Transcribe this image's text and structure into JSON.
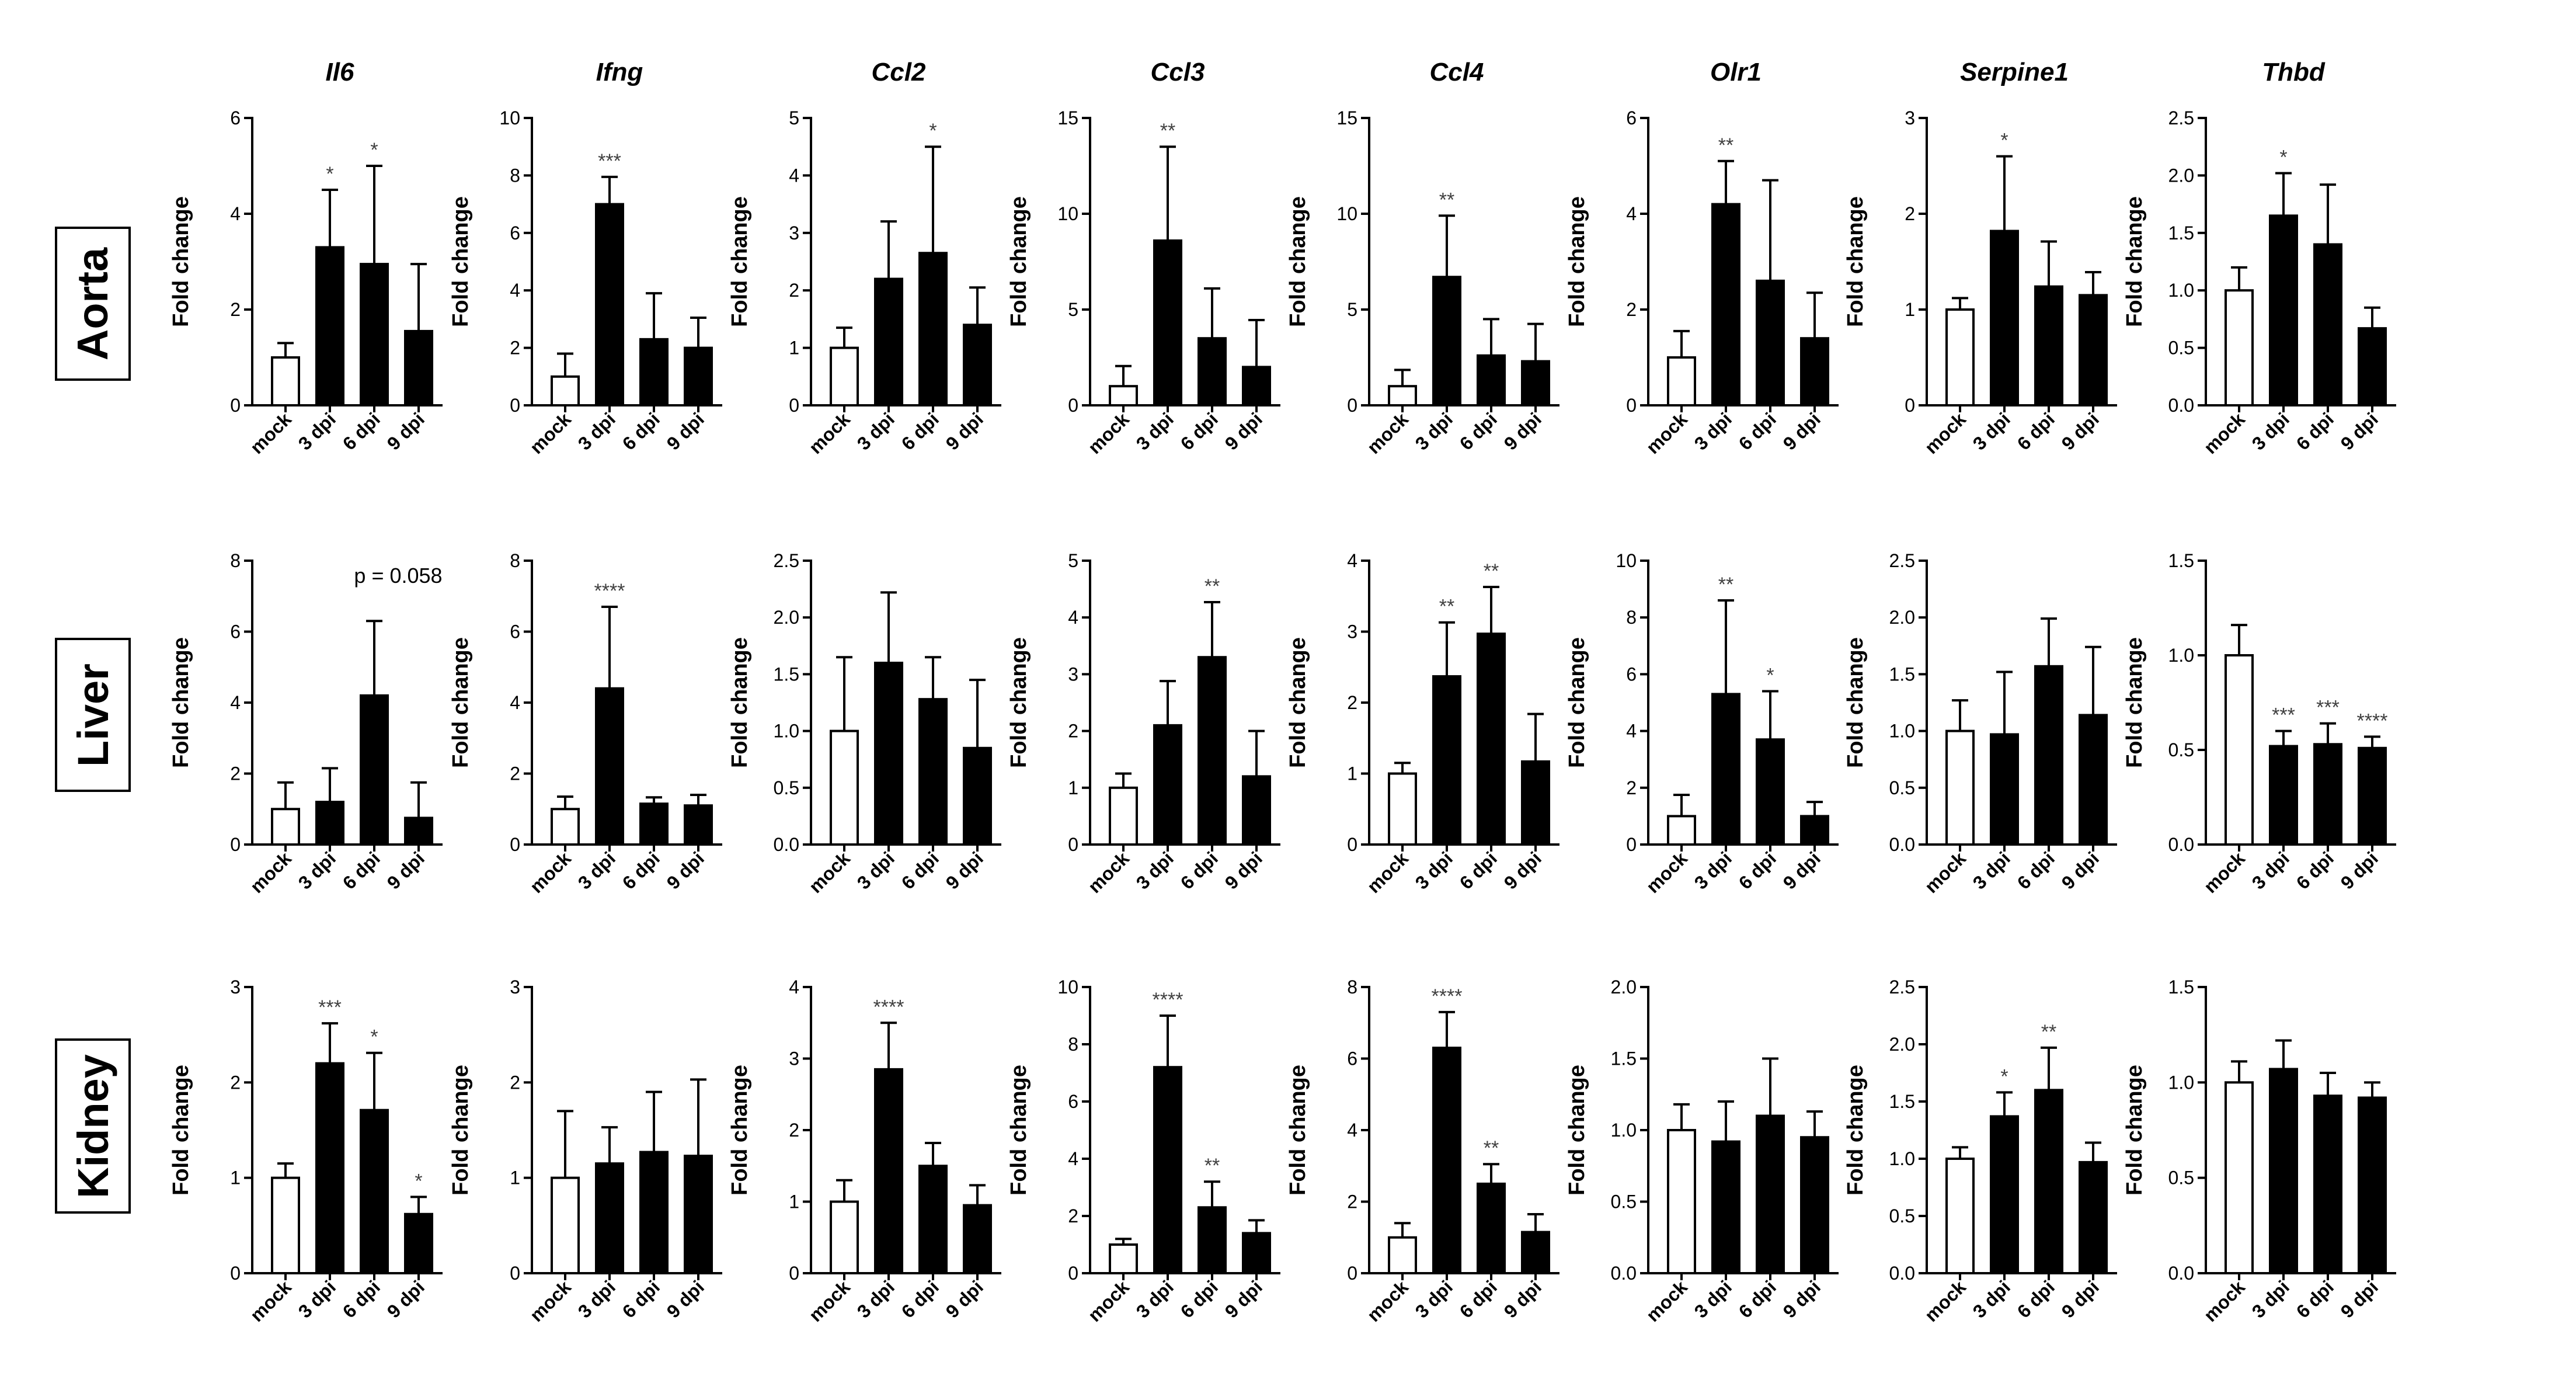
{
  "genes": [
    "Il6",
    "Ifng",
    "Ccl2",
    "Ccl3",
    "Ccl4",
    "Olr1",
    "Serpine1",
    "Thbd"
  ],
  "tissues": [
    "Aorta",
    "Liver",
    "Kidney"
  ],
  "y_label": "Fold change",
  "categories": [
    "mock",
    "3 dpi",
    "6 dpi",
    "9 dpi"
  ],
  "colors": {
    "mock_fill": "#ffffff",
    "infected_fill": "#000000",
    "stroke": "#000000",
    "significance": "#404040"
  },
  "chart_data": [
    {
      "type": "bar",
      "tissue": "Aorta",
      "gene": "Il6",
      "ylabel": "Fold change",
      "ylim": [
        0,
        6
      ],
      "ticks": [
        "0",
        "2",
        "4",
        "6"
      ],
      "categories": [
        "mock",
        "3 dpi",
        "6 dpi",
        "9 dpi"
      ],
      "values": [
        1.0,
        3.3,
        2.95,
        1.55
      ],
      "errors": [
        0.3,
        1.2,
        2.05,
        1.4
      ],
      "significance": [
        "",
        "*",
        "*",
        ""
      ],
      "annotation": ""
    },
    {
      "type": "bar",
      "tissue": "Aorta",
      "gene": "Ifng",
      "ylabel": "Fold change",
      "ylim": [
        0,
        10
      ],
      "ticks": [
        "0",
        "2",
        "4",
        "6",
        "8",
        "10"
      ],
      "categories": [
        "mock",
        "3 dpi",
        "6 dpi",
        "9 dpi"
      ],
      "values": [
        1.0,
        7.0,
        2.3,
        2.0
      ],
      "errors": [
        0.8,
        0.95,
        1.6,
        1.05
      ],
      "significance": [
        "",
        "***",
        "",
        ""
      ],
      "annotation": ""
    },
    {
      "type": "bar",
      "tissue": "Aorta",
      "gene": "Ccl2",
      "ylabel": "Fold change",
      "ylim": [
        0,
        5
      ],
      "ticks": [
        "0",
        "1",
        "2",
        "3",
        "4",
        "5"
      ],
      "categories": [
        "mock",
        "3 dpi",
        "6 dpi",
        "9 dpi"
      ],
      "values": [
        1.0,
        2.2,
        2.65,
        1.4
      ],
      "errors": [
        0.35,
        1.0,
        1.85,
        0.65
      ],
      "significance": [
        "",
        "",
        "*",
        ""
      ],
      "annotation": ""
    },
    {
      "type": "bar",
      "tissue": "Aorta",
      "gene": "Ccl3",
      "ylabel": "Fold change",
      "ylim": [
        0,
        15
      ],
      "ticks": [
        "0",
        "5",
        "10",
        "15"
      ],
      "categories": [
        "mock",
        "3 dpi",
        "6 dpi",
        "9 dpi"
      ],
      "values": [
        1.0,
        8.6,
        3.5,
        2.0
      ],
      "errors": [
        1.05,
        4.9,
        2.6,
        2.45
      ],
      "significance": [
        "",
        "**",
        "",
        ""
      ],
      "annotation": ""
    },
    {
      "type": "bar",
      "tissue": "Aorta",
      "gene": "Ccl4",
      "ylabel": "Fold change",
      "ylim": [
        0,
        15
      ],
      "ticks": [
        "0",
        "5",
        "10",
        "15"
      ],
      "categories": [
        "mock",
        "3 dpi",
        "6 dpi",
        "9 dpi"
      ],
      "values": [
        1.0,
        6.7,
        2.6,
        2.3
      ],
      "errors": [
        0.85,
        3.2,
        1.9,
        1.95
      ],
      "significance": [
        "",
        "**",
        "",
        ""
      ],
      "annotation": ""
    },
    {
      "type": "bar",
      "tissue": "Aorta",
      "gene": "Olr1",
      "ylabel": "Fold change",
      "ylim": [
        0,
        6
      ],
      "ticks": [
        "0",
        "2",
        "4",
        "6"
      ],
      "categories": [
        "mock",
        "3 dpi",
        "6 dpi",
        "9 dpi"
      ],
      "values": [
        1.0,
        4.2,
        2.6,
        1.4
      ],
      "errors": [
        0.55,
        0.9,
        2.1,
        0.95
      ],
      "significance": [
        "",
        "**",
        "",
        ""
      ],
      "annotation": ""
    },
    {
      "type": "bar",
      "tissue": "Aorta",
      "gene": "Serpine1",
      "ylabel": "Fold change",
      "ylim": [
        0,
        3
      ],
      "ticks": [
        "0",
        "1",
        "2",
        "3"
      ],
      "categories": [
        "mock",
        "3 dpi",
        "6 dpi",
        "9 dpi"
      ],
      "values": [
        1.0,
        1.82,
        1.24,
        1.15
      ],
      "errors": [
        0.12,
        0.78,
        0.47,
        0.24
      ],
      "significance": [
        "",
        "*",
        "",
        ""
      ],
      "annotation": ""
    },
    {
      "type": "bar",
      "tissue": "Aorta",
      "gene": "Thbd",
      "ylabel": "Fold change",
      "ylim": [
        0,
        2.5
      ],
      "ticks": [
        "0.0",
        "0.5",
        "1.0",
        "1.5",
        "2.0",
        "2.5"
      ],
      "categories": [
        "mock",
        "3 dpi",
        "6 dpi",
        "9 dpi"
      ],
      "values": [
        1.0,
        1.65,
        1.4,
        0.67
      ],
      "errors": [
        0.2,
        0.37,
        0.52,
        0.18
      ],
      "significance": [
        "",
        "*",
        "",
        ""
      ],
      "annotation": ""
    },
    {
      "type": "bar",
      "tissue": "Liver",
      "gene": "Il6",
      "ylabel": "Fold change",
      "ylim": [
        0,
        8
      ],
      "ticks": [
        "0",
        "2",
        "4",
        "6",
        "8"
      ],
      "categories": [
        "mock",
        "3 dpi",
        "6 dpi",
        "9 dpi"
      ],
      "values": [
        1.0,
        1.2,
        4.2,
        0.75
      ],
      "errors": [
        0.75,
        0.95,
        2.1,
        1.0
      ],
      "significance": [
        "",
        "",
        "",
        ""
      ],
      "annotation": "p = 0.058"
    },
    {
      "type": "bar",
      "tissue": "Liver",
      "gene": "Ifng",
      "ylabel": "Fold change",
      "ylim": [
        0,
        8
      ],
      "ticks": [
        "0",
        "2",
        "4",
        "6",
        "8"
      ],
      "categories": [
        "mock",
        "3 dpi",
        "6 dpi",
        "9 dpi"
      ],
      "values": [
        1.0,
        4.4,
        1.15,
        1.1
      ],
      "errors": [
        0.35,
        2.3,
        0.18,
        0.3
      ],
      "significance": [
        "",
        "****",
        "",
        ""
      ],
      "annotation": ""
    },
    {
      "type": "bar",
      "tissue": "Liver",
      "gene": "Ccl2",
      "ylabel": "Fold change",
      "ylim": [
        0,
        2.5
      ],
      "ticks": [
        "0.0",
        "0.5",
        "1.0",
        "1.5",
        "2.0",
        "2.5"
      ],
      "categories": [
        "mock",
        "3 dpi",
        "6 dpi",
        "9 dpi"
      ],
      "values": [
        1.0,
        1.6,
        1.28,
        0.85
      ],
      "errors": [
        0.65,
        0.62,
        0.37,
        0.6
      ],
      "significance": [
        "",
        "",
        "",
        ""
      ],
      "annotation": ""
    },
    {
      "type": "bar",
      "tissue": "Liver",
      "gene": "Ccl3",
      "ylabel": "Fold change",
      "ylim": [
        0,
        5
      ],
      "ticks": [
        "0",
        "1",
        "2",
        "3",
        "4",
        "5"
      ],
      "categories": [
        "mock",
        "3 dpi",
        "6 dpi",
        "9 dpi"
      ],
      "values": [
        1.0,
        2.1,
        3.3,
        1.2
      ],
      "errors": [
        0.25,
        0.78,
        0.97,
        0.8
      ],
      "significance": [
        "",
        "",
        "**",
        ""
      ],
      "annotation": ""
    },
    {
      "type": "bar",
      "tissue": "Liver",
      "gene": "Ccl4",
      "ylabel": "Fold change",
      "ylim": [
        0,
        4
      ],
      "ticks": [
        "0",
        "1",
        "2",
        "3",
        "4"
      ],
      "categories": [
        "mock",
        "3 dpi",
        "6 dpi",
        "9 dpi"
      ],
      "values": [
        1.0,
        2.37,
        2.97,
        1.17
      ],
      "errors": [
        0.15,
        0.76,
        0.66,
        0.67
      ],
      "significance": [
        "",
        "**",
        "**",
        ""
      ],
      "annotation": ""
    },
    {
      "type": "bar",
      "tissue": "Liver",
      "gene": "Olr1",
      "ylabel": "Fold change",
      "ylim": [
        0,
        10
      ],
      "ticks": [
        "0",
        "2",
        "4",
        "6",
        "8",
        "10"
      ],
      "categories": [
        "mock",
        "3 dpi",
        "6 dpi",
        "9 dpi"
      ],
      "values": [
        1.0,
        5.3,
        3.7,
        1.0
      ],
      "errors": [
        0.75,
        3.3,
        1.7,
        0.5
      ],
      "significance": [
        "",
        "**",
        "*",
        ""
      ],
      "annotation": ""
    },
    {
      "type": "bar",
      "tissue": "Liver",
      "gene": "Serpine1",
      "ylabel": "Fold change",
      "ylim": [
        0,
        2.5
      ],
      "ticks": [
        "0.0",
        "0.5",
        "1.0",
        "1.5",
        "2.0",
        "2.5"
      ],
      "categories": [
        "mock",
        "3 dpi",
        "6 dpi",
        "9 dpi"
      ],
      "values": [
        1.0,
        0.97,
        1.57,
        1.14
      ],
      "errors": [
        0.27,
        0.55,
        0.42,
        0.6
      ],
      "significance": [
        "",
        "",
        "",
        ""
      ],
      "annotation": ""
    },
    {
      "type": "bar",
      "tissue": "Liver",
      "gene": "Thbd",
      "ylabel": "Fold change",
      "ylim": [
        0,
        1.5
      ],
      "ticks": [
        "0.0",
        "0.5",
        "1.0",
        "1.5"
      ],
      "categories": [
        "mock",
        "3 dpi",
        "6 dpi",
        "9 dpi"
      ],
      "values": [
        1.0,
        0.52,
        0.53,
        0.51
      ],
      "errors": [
        0.16,
        0.08,
        0.11,
        0.06
      ],
      "significance": [
        "",
        "***",
        "***",
        "****"
      ],
      "annotation": ""
    },
    {
      "type": "bar",
      "tissue": "Kidney",
      "gene": "Il6",
      "ylabel": "Fold change",
      "ylim": [
        0,
        3
      ],
      "ticks": [
        "0",
        "1",
        "2",
        "3"
      ],
      "categories": [
        "mock",
        "3 dpi",
        "6 dpi",
        "9 dpi"
      ],
      "values": [
        1.0,
        2.2,
        1.71,
        0.62
      ],
      "errors": [
        0.15,
        0.42,
        0.6,
        0.18
      ],
      "significance": [
        "",
        "***",
        "*",
        "*"
      ],
      "annotation": ""
    },
    {
      "type": "bar",
      "tissue": "Kidney",
      "gene": "Ifng",
      "ylabel": "Fold change",
      "ylim": [
        0,
        3
      ],
      "ticks": [
        "0",
        "1",
        "2",
        "3"
      ],
      "categories": [
        "mock",
        "3 dpi",
        "6 dpi",
        "9 dpi"
      ],
      "values": [
        1.0,
        1.15,
        1.27,
        1.23
      ],
      "errors": [
        0.7,
        0.38,
        0.63,
        0.8
      ],
      "significance": [
        "",
        "",
        "",
        ""
      ],
      "annotation": ""
    },
    {
      "type": "bar",
      "tissue": "Kidney",
      "gene": "Ccl2",
      "ylabel": "Fold change",
      "ylim": [
        0,
        4
      ],
      "ticks": [
        "0",
        "1",
        "2",
        "3",
        "4"
      ],
      "categories": [
        "mock",
        "3 dpi",
        "6 dpi",
        "9 dpi"
      ],
      "values": [
        1.0,
        2.85,
        1.5,
        0.95
      ],
      "errors": [
        0.3,
        0.65,
        0.32,
        0.28
      ],
      "significance": [
        "",
        "****",
        "",
        ""
      ],
      "annotation": ""
    },
    {
      "type": "bar",
      "tissue": "Kidney",
      "gene": "Ccl3",
      "ylabel": "Fold change",
      "ylim": [
        0,
        10
      ],
      "ticks": [
        "0",
        "2",
        "4",
        "6",
        "8",
        "10"
      ],
      "categories": [
        "mock",
        "3 dpi",
        "6 dpi",
        "9 dpi"
      ],
      "values": [
        1.0,
        7.2,
        2.3,
        1.4
      ],
      "errors": [
        0.2,
        1.8,
        0.9,
        0.45
      ],
      "significance": [
        "",
        "****",
        "**",
        ""
      ],
      "annotation": ""
    },
    {
      "type": "bar",
      "tissue": "Kidney",
      "gene": "Ccl4",
      "ylabel": "Fold change",
      "ylim": [
        0,
        8
      ],
      "ticks": [
        "0",
        "2",
        "4",
        "6",
        "8"
      ],
      "categories": [
        "mock",
        "3 dpi",
        "6 dpi",
        "9 dpi"
      ],
      "values": [
        1.0,
        6.3,
        2.5,
        1.15
      ],
      "errors": [
        0.4,
        1.0,
        0.55,
        0.5
      ],
      "significance": [
        "",
        "****",
        "**",
        ""
      ],
      "annotation": ""
    },
    {
      "type": "bar",
      "tissue": "Kidney",
      "gene": "Olr1",
      "ylabel": "Fold change",
      "ylim": [
        0,
        2
      ],
      "ticks": [
        "0.0",
        "0.5",
        "1.0",
        "1.5",
        "2.0"
      ],
      "categories": [
        "mock",
        "3 dpi",
        "6 dpi",
        "9 dpi"
      ],
      "values": [
        1.0,
        0.92,
        1.1,
        0.95
      ],
      "errors": [
        0.18,
        0.28,
        0.4,
        0.18
      ],
      "significance": [
        "",
        "",
        "",
        ""
      ],
      "annotation": ""
    },
    {
      "type": "bar",
      "tissue": "Kidney",
      "gene": "Serpine1",
      "ylabel": "Fold change",
      "ylim": [
        0,
        2.5
      ],
      "ticks": [
        "0.0",
        "0.5",
        "1.0",
        "1.5",
        "2.0",
        "2.5"
      ],
      "categories": [
        "mock",
        "3 dpi",
        "6 dpi",
        "9 dpi"
      ],
      "values": [
        1.0,
        1.37,
        1.6,
        0.97
      ],
      "errors": [
        0.1,
        0.21,
        0.37,
        0.17
      ],
      "significance": [
        "",
        "*",
        "**",
        ""
      ],
      "annotation": ""
    },
    {
      "type": "bar",
      "tissue": "Kidney",
      "gene": "Thbd",
      "ylabel": "Fold change",
      "ylim": [
        0,
        1.5
      ],
      "ticks": [
        "0.0",
        "0.5",
        "1.0",
        "1.5"
      ],
      "categories": [
        "mock",
        "3 dpi",
        "6 dpi",
        "9 dpi"
      ],
      "values": [
        1.0,
        1.07,
        0.93,
        0.92
      ],
      "errors": [
        0.11,
        0.15,
        0.12,
        0.08
      ],
      "significance": [
        "",
        "",
        "",
        ""
      ],
      "annotation": ""
    }
  ]
}
